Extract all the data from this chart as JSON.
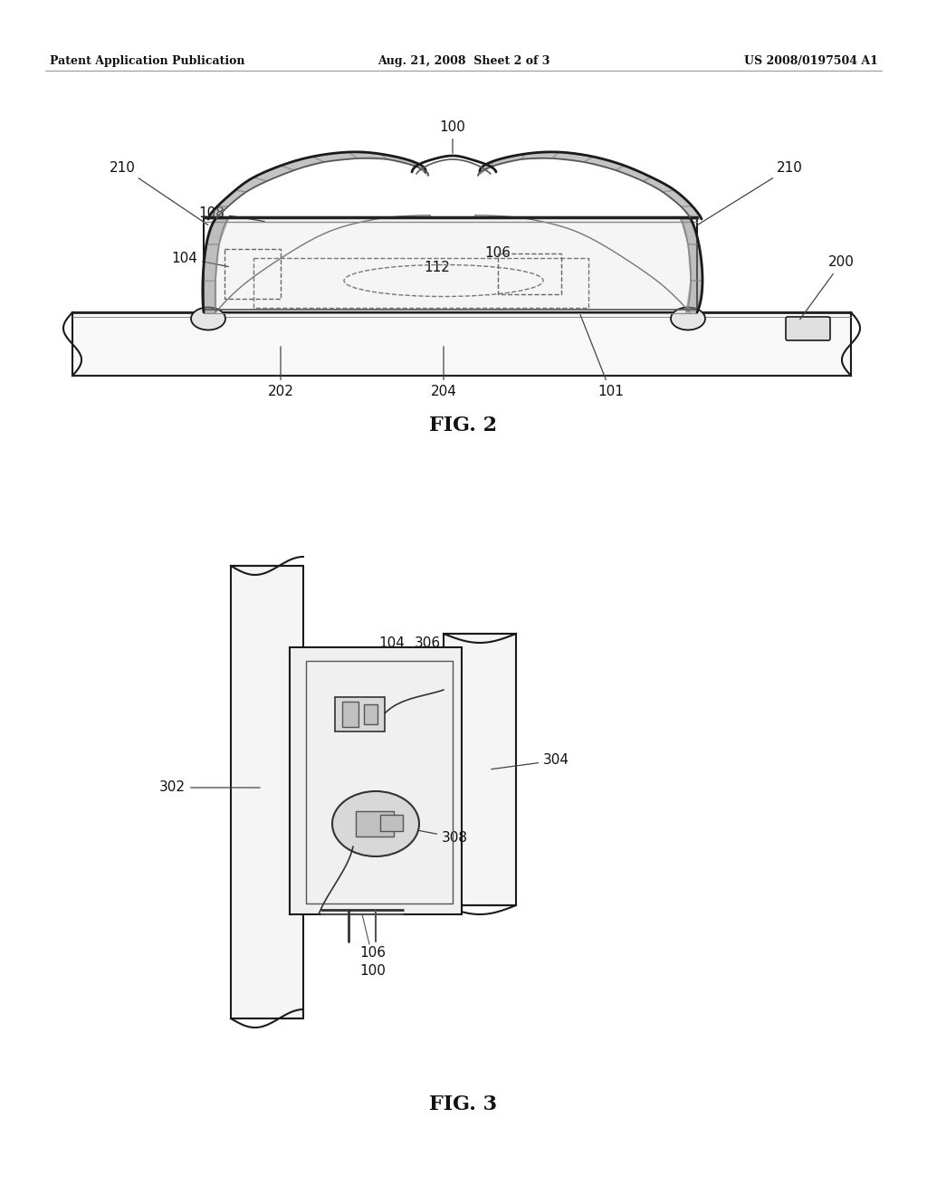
{
  "bg_color": "#ffffff",
  "line_color": "#1a1a1a",
  "header_left": "Patent Application Publication",
  "header_mid": "Aug. 21, 2008  Sheet 2 of 3",
  "header_right": "US 2008/0197504 A1",
  "fig2_label": "FIG. 2",
  "fig3_label": "FIG. 3"
}
